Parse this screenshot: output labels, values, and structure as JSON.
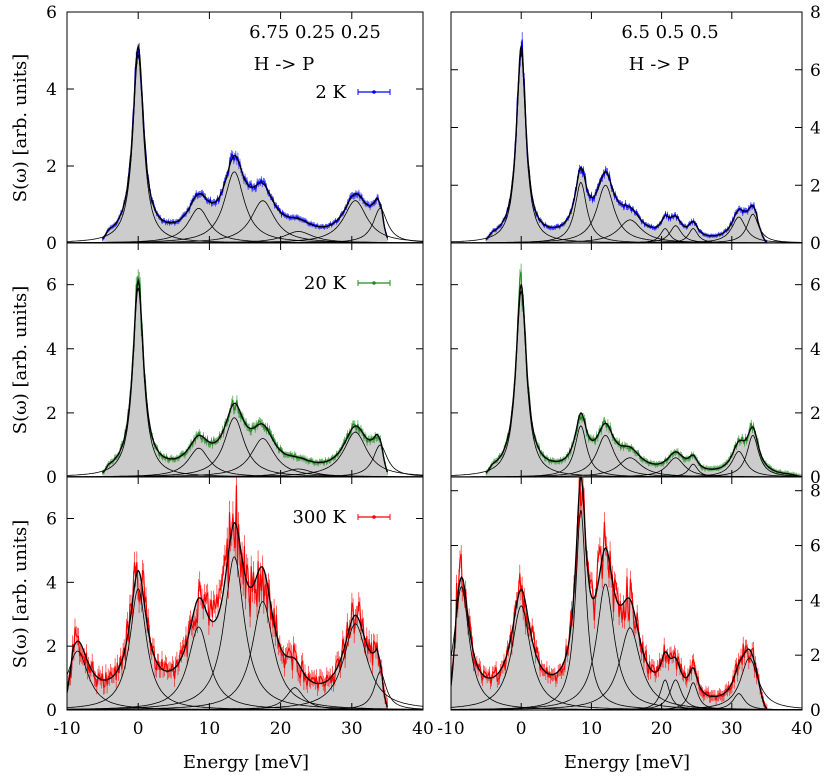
{
  "figure": {
    "ylabel": "S(ω) [arb. units]",
    "xlabel": "Energy [meV]",
    "colors": {
      "2K": "#0000ff",
      "20K": "#228b22",
      "300K": "#ff0000",
      "fill": "#cccccc",
      "fit": "#000000"
    }
  },
  "chart_data": [
    {
      "type": "line",
      "panel": "left-2K",
      "title": "6.75 0.25 0.25",
      "subtitle": "H -> P",
      "legend": "2 K",
      "color": "#0000ff",
      "xlim": [
        -10,
        40
      ],
      "ylim": [
        0,
        6
      ],
      "yticks": [
        "0",
        "2",
        "4",
        "6"
      ],
      "xticks": [],
      "x_range": [
        -5,
        35
      ],
      "tail_end": 0.45,
      "base": 0.12,
      "noise": 0.08,
      "peaks": [
        {
          "center": 0,
          "height": 4.9,
          "width": 0.9
        },
        {
          "center": 8.5,
          "height": 0.9,
          "width": 1.8
        },
        {
          "center": 13.5,
          "height": 1.85,
          "width": 1.7
        },
        {
          "center": 17.5,
          "height": 1.1,
          "width": 2.0
        },
        {
          "center": 22.5,
          "height": 0.3,
          "width": 2.5
        },
        {
          "center": 30.5,
          "height": 1.1,
          "width": 2.0
        },
        {
          "center": 34,
          "height": 0.9,
          "width": 1.2
        }
      ]
    },
    {
      "type": "line",
      "panel": "left-20K",
      "legend": "20 K",
      "color": "#228b22",
      "xlim": [
        -10,
        40
      ],
      "ylim": [
        0,
        7.3
      ],
      "yticks": [
        "0",
        "2",
        "4",
        "6"
      ],
      "xticks": [],
      "x_range": [
        -5,
        35
      ],
      "tail_end": 0.45,
      "base": 0.12,
      "noise": 0.12,
      "peaks": [
        {
          "center": 0,
          "height": 5.9,
          "width": 0.9
        },
        {
          "center": 8.5,
          "height": 0.9,
          "width": 1.8
        },
        {
          "center": 13.5,
          "height": 1.85,
          "width": 1.7
        },
        {
          "center": 17.5,
          "height": 1.2,
          "width": 2.0
        },
        {
          "center": 22.5,
          "height": 0.25,
          "width": 2.5
        },
        {
          "center": 30.5,
          "height": 1.4,
          "width": 2.0
        },
        {
          "center": 34,
          "height": 1.0,
          "width": 1.2
        }
      ]
    },
    {
      "type": "line",
      "panel": "left-300K",
      "legend": "300 K",
      "color": "#ff0000",
      "xlim": [
        -10,
        40
      ],
      "ylim": [
        0,
        7.3
      ],
      "yticks": [
        "0",
        "2",
        "4",
        "6"
      ],
      "xticks": [
        "-10",
        "0",
        "10",
        "20",
        "30",
        "40"
      ],
      "x_range": [
        -10,
        35
      ],
      "tail_end": 0.2,
      "base": 0.25,
      "noise": 0.35,
      "peaks": [
        {
          "center": -8.5,
          "height": 1.85,
          "width": 1.8
        },
        {
          "center": 0,
          "height": 3.8,
          "width": 1.4
        },
        {
          "center": 8.5,
          "height": 2.6,
          "width": 1.8
        },
        {
          "center": 13.5,
          "height": 4.8,
          "width": 1.7
        },
        {
          "center": 17.5,
          "height": 3.4,
          "width": 1.8
        },
        {
          "center": 22,
          "height": 0.7,
          "width": 1.5
        },
        {
          "center": 30.5,
          "height": 2.7,
          "width": 2.0
        },
        {
          "center": 34,
          "height": 1.2,
          "width": 1.0
        }
      ]
    },
    {
      "type": "line",
      "panel": "right-2K",
      "title": "6.5 0.5 0.5",
      "subtitle": "H -> P",
      "color": "#0000ff",
      "xlim": [
        -10,
        40
      ],
      "ylim": [
        0,
        8
      ],
      "yticks": [
        "0",
        "2",
        "4",
        "6",
        "8"
      ],
      "xticks": [],
      "x_range": [
        -5,
        35
      ],
      "tail_end": 0.3,
      "base": 0.15,
      "noise": 0.1,
      "peaks": [
        {
          "center": 0,
          "height": 6.6,
          "width": 0.8
        },
        {
          "center": 8.5,
          "height": 2.1,
          "width": 1.0
        },
        {
          "center": 12,
          "height": 2.0,
          "width": 1.5
        },
        {
          "center": 15.5,
          "height": 0.8,
          "width": 2.0
        },
        {
          "center": 20.5,
          "height": 0.5,
          "width": 0.8
        },
        {
          "center": 22,
          "height": 0.6,
          "width": 1.0
        },
        {
          "center": 24.5,
          "height": 0.5,
          "width": 0.8
        },
        {
          "center": 31,
          "height": 0.9,
          "width": 1.2
        },
        {
          "center": 33,
          "height": 1.0,
          "width": 1.0
        }
      ]
    },
    {
      "type": "line",
      "panel": "right-20K",
      "color": "#228b22",
      "xlim": [
        -10,
        40
      ],
      "ylim": [
        0,
        7.3
      ],
      "yticks": [
        "0",
        "2",
        "4",
        "6"
      ],
      "xticks": [],
      "x_range": [
        -5,
        40
      ],
      "tail_end": 0.2,
      "base": 0.15,
      "noise": 0.12,
      "peaks": [
        {
          "center": 0,
          "height": 5.8,
          "width": 0.9
        },
        {
          "center": 8.5,
          "height": 1.6,
          "width": 1.0
        },
        {
          "center": 12,
          "height": 1.3,
          "width": 1.5
        },
        {
          "center": 15.5,
          "height": 0.6,
          "width": 2.0
        },
        {
          "center": 22,
          "height": 0.6,
          "width": 1.5
        },
        {
          "center": 24.5,
          "height": 0.4,
          "width": 0.8
        },
        {
          "center": 31,
          "height": 0.8,
          "width": 1.2
        },
        {
          "center": 33,
          "height": 1.3,
          "width": 1.0
        }
      ]
    },
    {
      "type": "line",
      "panel": "right-300K",
      "color": "#ff0000",
      "xlim": [
        -10,
        40
      ],
      "ylim": [
        0,
        8.5
      ],
      "yticks": [
        "0",
        "2",
        "4",
        "6",
        "8"
      ],
      "xticks": [
        "-10",
        "0",
        "10",
        "20",
        "30",
        "40"
      ],
      "x_range": [
        -10,
        35
      ],
      "tail_end": 0.2,
      "base": 0.3,
      "noise": 0.3,
      "peaks": [
        {
          "center": -8.5,
          "height": 4.5,
          "width": 1.3
        },
        {
          "center": 0,
          "height": 3.8,
          "width": 1.6
        },
        {
          "center": 8.5,
          "height": 7.3,
          "width": 0.9
        },
        {
          "center": 12,
          "height": 4.6,
          "width": 1.5
        },
        {
          "center": 15.5,
          "height": 3.0,
          "width": 1.8
        },
        {
          "center": 20.5,
          "height": 1.1,
          "width": 0.8
        },
        {
          "center": 22,
          "height": 1.1,
          "width": 1.0
        },
        {
          "center": 24.5,
          "height": 1.0,
          "width": 0.8
        },
        {
          "center": 31,
          "height": 0.6,
          "width": 1.0
        },
        {
          "center": 32.5,
          "height": 1.9,
          "width": 1.5
        }
      ]
    }
  ]
}
